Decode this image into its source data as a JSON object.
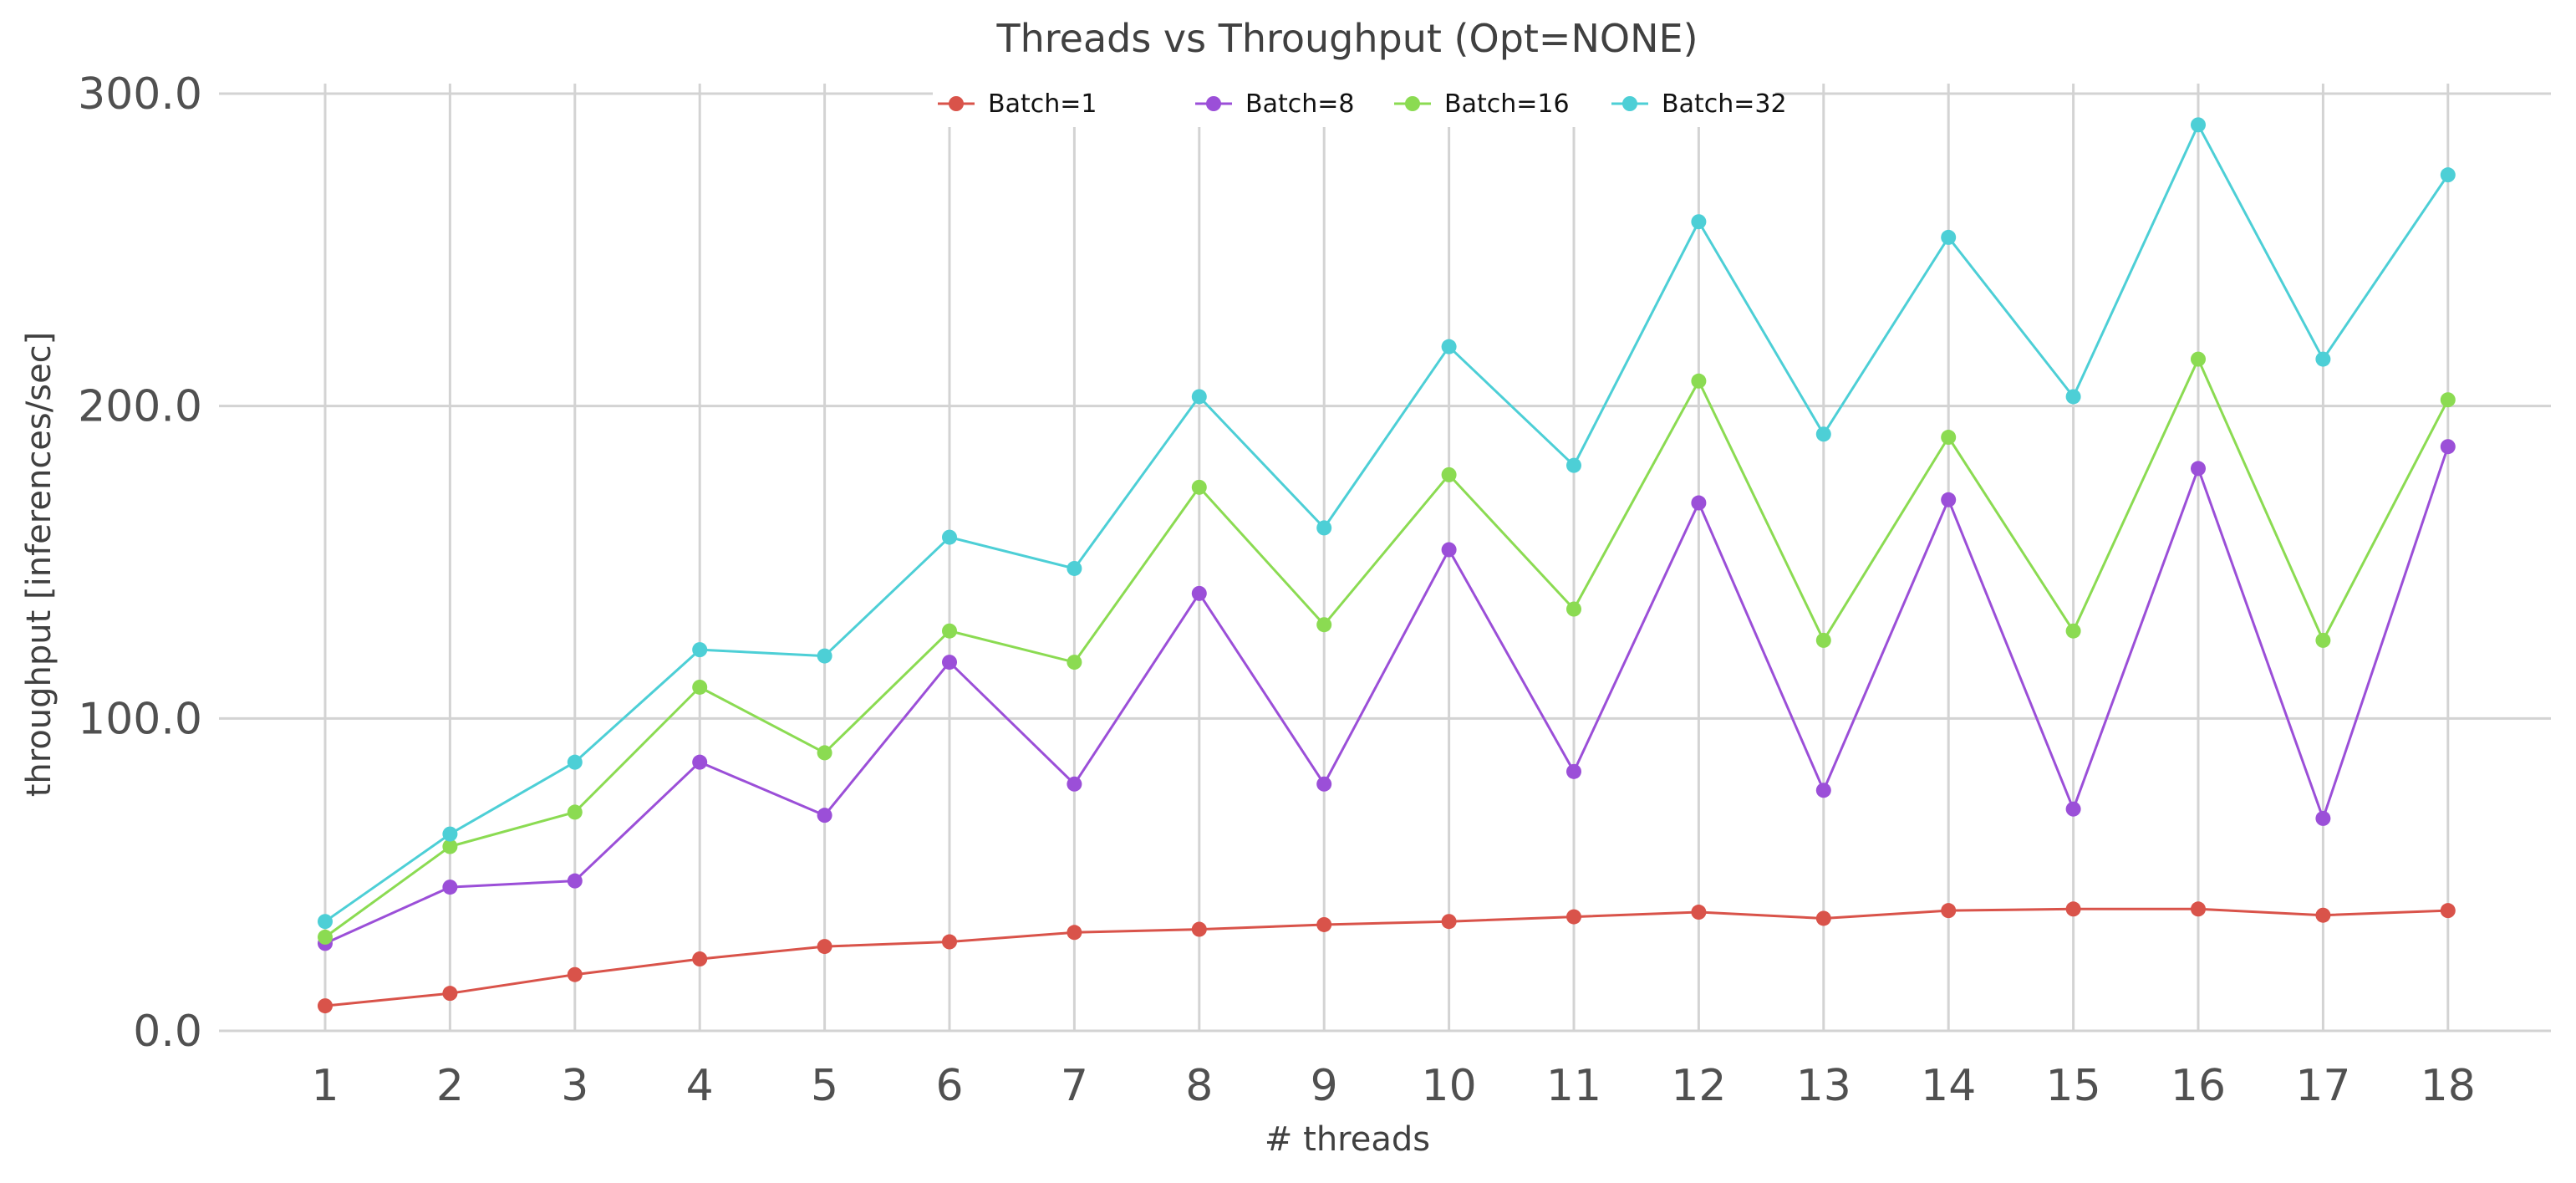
{
  "chart_data": {
    "type": "line",
    "title": "Threads vs Throughput (Opt=NONE)",
    "xlabel": "# threads",
    "ylabel": "throughput [inferences/sec]",
    "x": [
      1,
      2,
      3,
      4,
      5,
      6,
      7,
      8,
      9,
      10,
      11,
      12,
      13,
      14,
      15,
      16,
      17,
      18
    ],
    "xtick_labels": [
      "1",
      "2",
      "3",
      "4",
      "5",
      "6",
      "7",
      "8",
      "9",
      "10",
      "11",
      "12",
      "13",
      "14",
      "15",
      "16",
      "17",
      "18"
    ],
    "ylim": [
      0,
      300
    ],
    "yticks": [
      0,
      100,
      200,
      300
    ],
    "ytick_labels": [
      "0.0",
      "100.0",
      "200.0",
      "300.0"
    ],
    "grid": true,
    "legend_position": "top-center",
    "series": [
      {
        "name": "Batch=1",
        "color": "#d9534a",
        "values": [
          8,
          12,
          18,
          23,
          27,
          28.5,
          31.5,
          32.5,
          34,
          35,
          36.5,
          38,
          36,
          38.5,
          39,
          39,
          37,
          38.5
        ]
      },
      {
        "name": "Batch=8",
        "color": "#9b4fd8",
        "values": [
          28,
          46,
          48,
          86,
          69,
          118,
          79,
          140,
          79,
          154,
          83,
          169,
          77,
          170,
          71,
          180,
          68,
          187
        ]
      },
      {
        "name": "Batch=16",
        "color": "#8bdb52",
        "values": [
          30,
          59,
          70,
          110,
          89,
          128,
          118,
          174,
          130,
          178,
          135,
          208,
          125,
          190,
          128,
          215,
          125,
          202
        ]
      },
      {
        "name": "Batch=32",
        "color": "#4dcfd6",
        "values": [
          35,
          63,
          86,
          122,
          120,
          158,
          148,
          203,
          161,
          219,
          181,
          259,
          191,
          254,
          203,
          290,
          215,
          274
        ]
      }
    ]
  }
}
